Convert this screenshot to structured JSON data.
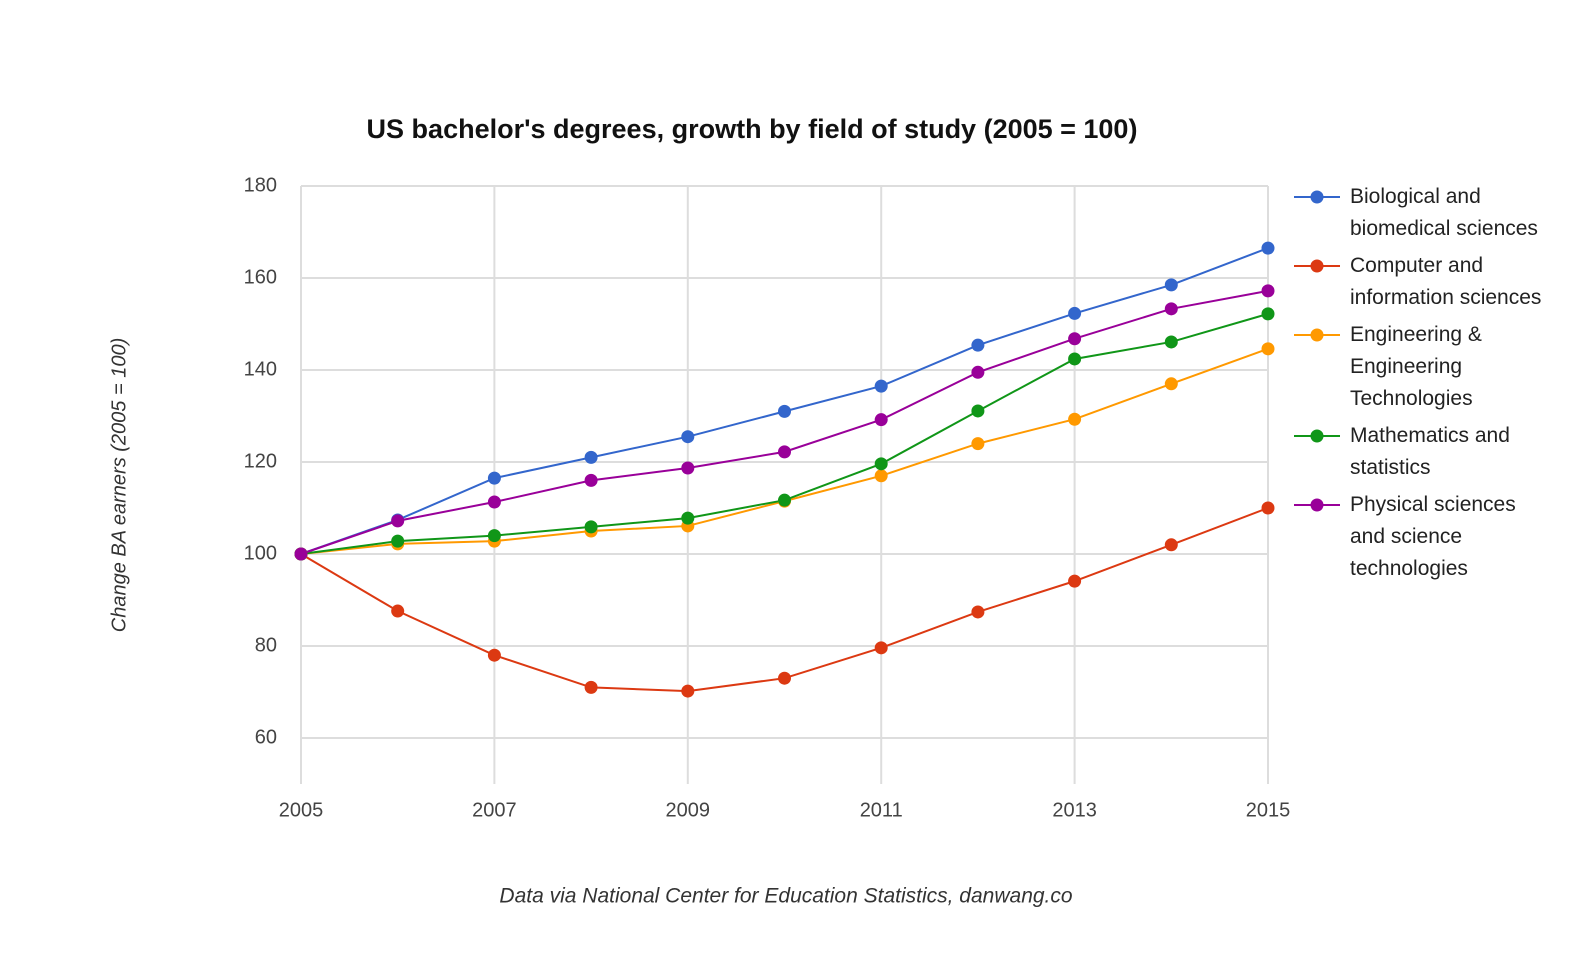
{
  "chart_data": {
    "type": "line",
    "title": "US bachelor's degrees, growth by field of study (2005 = 100)",
    "y_label": "Change BA earners (2005 = 100)",
    "caption": "Data via National Center for Education Statistics, danwang.co",
    "x": [
      2005,
      2006,
      2007,
      2008,
      2009,
      2010,
      2011,
      2012,
      2013,
      2014,
      2015
    ],
    "xlim": [
      2005,
      2015
    ],
    "xticks": [
      2005,
      2007,
      2009,
      2011,
      2013,
      2015
    ],
    "ylim": [
      50,
      180
    ],
    "yticks": [
      60,
      80,
      100,
      120,
      140,
      160,
      180
    ],
    "grid": true,
    "legend": "right",
    "series": [
      {
        "name": "Biological and biomedical sciences",
        "color": "#3366cc",
        "values": [
          100,
          107.4,
          116.5,
          121,
          125.5,
          131,
          136.5,
          145.4,
          152.3,
          158.5,
          166.5
        ]
      },
      {
        "name": "Computer and information sciences",
        "color": "#dc3912",
        "values": [
          100,
          87.6,
          78,
          71,
          70.2,
          73,
          79.6,
          87.4,
          94.1,
          102,
          110
        ]
      },
      {
        "name": "Engineering & Engineering Technologies",
        "color": "#ff9900",
        "values": [
          100,
          102.2,
          102.8,
          105,
          106.1,
          111.5,
          117,
          124,
          129.3,
          137,
          144.6
        ]
      },
      {
        "name": "Mathematics and statistics",
        "color": "#109618",
        "values": [
          100,
          102.8,
          104,
          105.9,
          107.8,
          111.7,
          119.6,
          131.1,
          142.4,
          146.1,
          152.2
        ]
      },
      {
        "name": "Physical sciences and science technologies",
        "color": "#990099",
        "values": [
          100,
          107.2,
          111.3,
          116,
          118.7,
          122.2,
          129.2,
          139.5,
          146.8,
          153.3,
          157.2
        ]
      }
    ]
  }
}
